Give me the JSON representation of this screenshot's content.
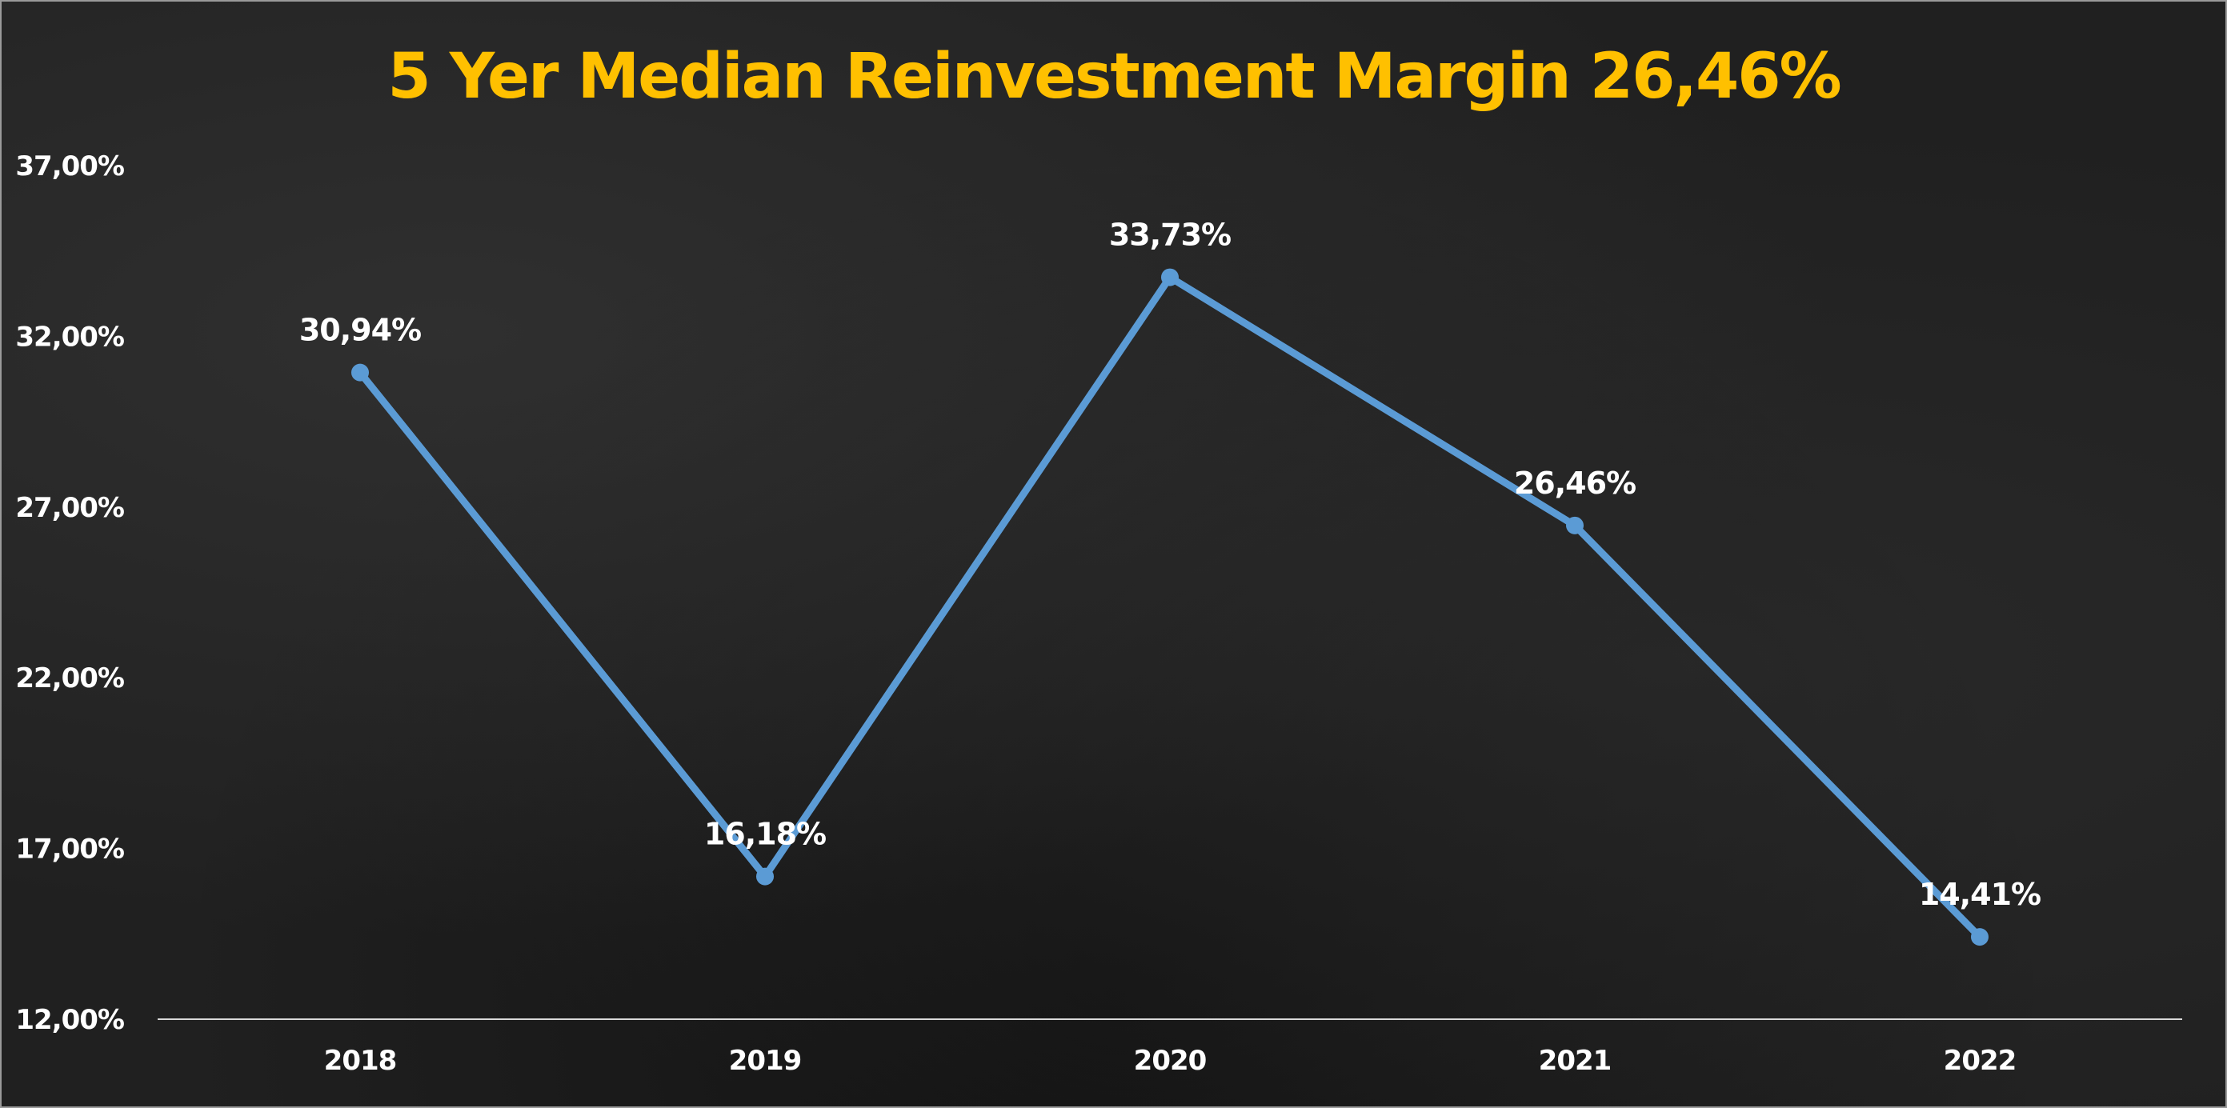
{
  "chart_data": {
    "type": "line",
    "title": "5 Yer Median Reinvestment Margin 26,46%",
    "xlabel": "",
    "ylabel": "",
    "categories": [
      "2018",
      "2019",
      "2020",
      "2021",
      "2022"
    ],
    "series": [
      {
        "name": "Reinvestment Margin",
        "values": [
          30.94,
          16.18,
          33.73,
          26.46,
          14.41
        ],
        "labels": [
          "30,94%",
          "16,18%",
          "33,73%",
          "26,46%",
          "14,41%"
        ]
      }
    ],
    "ylim": [
      12,
      37
    ],
    "yticks": [
      12,
      17,
      22,
      27,
      32,
      37
    ],
    "ytick_labels": [
      "12,00%",
      "17,00%",
      "22,00%",
      "27,00%",
      "32,00%",
      "37,00%"
    ],
    "grid": false,
    "legend": "none",
    "colors": {
      "title": "#FFC000",
      "line": "#5B9BD5",
      "text": "#FFFFFF",
      "axis": "#D9D9D9",
      "background": "#202020"
    }
  }
}
